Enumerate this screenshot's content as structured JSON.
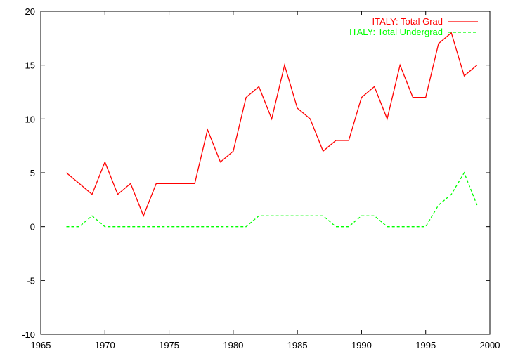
{
  "chart_data": {
    "type": "line",
    "title": "",
    "xlabel": "",
    "ylabel": "",
    "xlim": [
      1965,
      2000
    ],
    "ylim": [
      -10,
      20
    ],
    "xticks": [
      1965,
      1970,
      1975,
      1980,
      1985,
      1990,
      1995,
      2000
    ],
    "yticks": [
      -10,
      -5,
      0,
      5,
      10,
      15,
      20
    ],
    "grid": false,
    "legend_position": "top-right",
    "series": [
      {
        "name": "ITALY: Total Grad",
        "color": "#ff0000",
        "dash": "solid",
        "x": [
          1967,
          1968,
          1969,
          1970,
          1971,
          1972,
          1973,
          1974,
          1975,
          1976,
          1977,
          1978,
          1979,
          1980,
          1981,
          1982,
          1983,
          1984,
          1985,
          1986,
          1987,
          1988,
          1989,
          1990,
          1991,
          1992,
          1993,
          1994,
          1995,
          1996,
          1997,
          1998,
          1999
        ],
        "y": [
          5,
          4,
          3,
          6,
          3,
          4,
          1,
          4,
          4,
          4,
          4,
          9,
          6,
          7,
          12,
          13,
          10,
          15,
          11,
          10,
          7,
          8,
          8,
          12,
          13,
          10,
          15,
          12,
          12,
          17,
          18,
          14,
          15
        ]
      },
      {
        "name": "ITALY: Total Undergrad",
        "color": "#00ff00",
        "dash": "dashed",
        "x": [
          1967,
          1968,
          1969,
          1970,
          1971,
          1972,
          1973,
          1974,
          1975,
          1976,
          1977,
          1978,
          1979,
          1980,
          1981,
          1982,
          1983,
          1984,
          1985,
          1986,
          1987,
          1988,
          1989,
          1990,
          1991,
          1992,
          1993,
          1994,
          1995,
          1996,
          1997,
          1998,
          1999
        ],
        "y": [
          0,
          0,
          1,
          0,
          0,
          0,
          0,
          0,
          0,
          0,
          0,
          0,
          0,
          0,
          0,
          1,
          1,
          1,
          1,
          1,
          1,
          0,
          0,
          1,
          1,
          0,
          0,
          0,
          0,
          2,
          3,
          5,
          2
        ]
      }
    ]
  }
}
